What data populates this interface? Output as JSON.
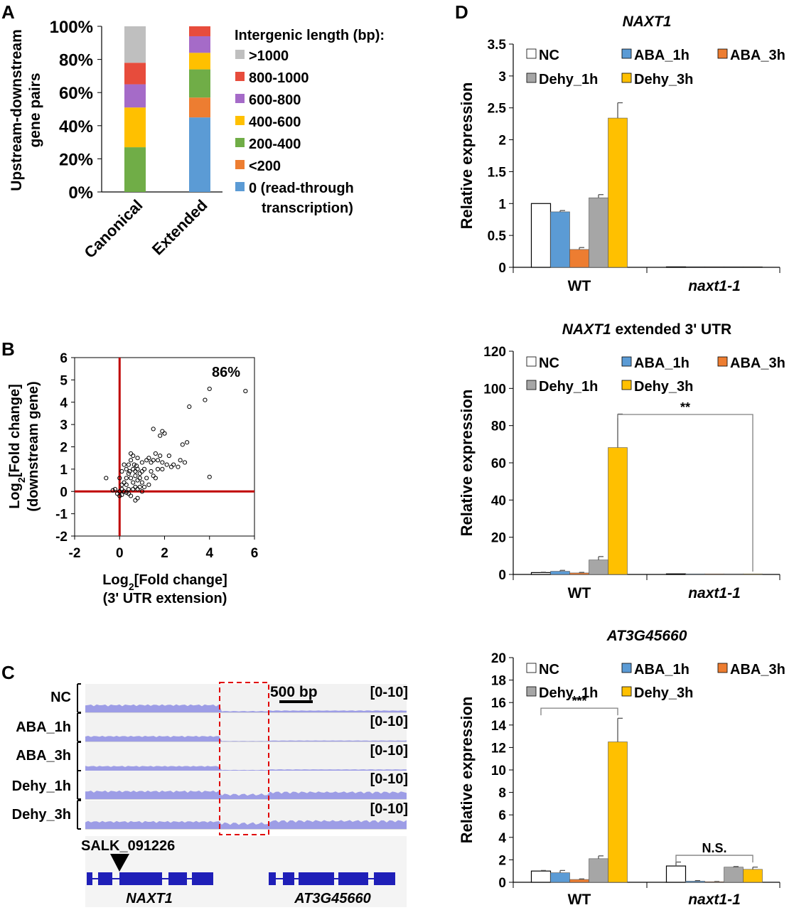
{
  "panels": {
    "A": "A",
    "B": "B",
    "C": "C",
    "D": "D"
  },
  "chart_data": [
    {
      "id": "A",
      "type": "bar",
      "stacked": true,
      "ylabel_lines": [
        "Upstream-downstream",
        "gene pairs"
      ],
      "yticks": [
        "0%",
        "20%",
        "40%",
        "60%",
        "80%",
        "100%"
      ],
      "ylim": [
        0,
        100
      ],
      "categories": [
        "Canonical",
        "Extended"
      ],
      "legend_title": "Intergenic length (bp):",
      "series": [
        {
          "name": "0 (read-through",
          "name2": "transcription)",
          "color": "#5b9bd5",
          "values": [
            0,
            45
          ]
        },
        {
          "name": "<200",
          "color": "#ed7d31",
          "values": [
            0,
            12
          ]
        },
        {
          "name": "200-400",
          "color": "#70ad47",
          "values": [
            27,
            17
          ]
        },
        {
          "name": "400-600",
          "color": "#ffc000",
          "values": [
            24,
            10
          ]
        },
        {
          "name": "600-800",
          "color": "#a56bc8",
          "values": [
            14,
            10
          ]
        },
        {
          "name": "800-1000",
          "color": "#e74c3c",
          "values": [
            13,
            6
          ]
        },
        {
          "name": ">1000",
          "color": "#bfbfbf",
          "values": [
            22,
            0
          ]
        }
      ]
    },
    {
      "id": "B",
      "type": "scatter",
      "xlabel": "Log",
      "xlabel_sub": "2",
      "xlabel_rest": "[Fold change]",
      "xlabel2": "(3' UTR extension)",
      "ylabel": "Log",
      "ylabel_sub": "2",
      "ylabel_rest": "[Fold change]",
      "ylabel2": "(downstream gene)",
      "xlim": [
        -2,
        6
      ],
      "ylim": [
        -2,
        6
      ],
      "xticks": [
        "-2",
        "0",
        "2",
        "4",
        "6"
      ],
      "yticks": [
        "-2",
        "-1",
        "0",
        "1",
        "2",
        "3",
        "4",
        "5",
        "6"
      ],
      "annotation": "86%",
      "line_color": "#c00000",
      "points": [
        [
          5.6,
          4.5
        ],
        [
          4.0,
          4.6
        ],
        [
          3.8,
          4.1
        ],
        [
          3.1,
          3.8
        ],
        [
          4.0,
          0.65
        ],
        [
          1.5,
          2.8
        ],
        [
          1.9,
          2.7
        ],
        [
          2.0,
          2.6
        ],
        [
          1.8,
          2.5
        ],
        [
          2.8,
          2.1
        ],
        [
          3.0,
          2.2
        ],
        [
          2.9,
          1.3
        ],
        [
          2.7,
          1.4
        ],
        [
          2.6,
          1.1
        ],
        [
          2.4,
          1.2
        ],
        [
          2.3,
          1.1
        ],
        [
          2.2,
          1.6
        ],
        [
          2.1,
          1.2
        ],
        [
          1.8,
          1.6
        ],
        [
          1.7,
          1.4
        ],
        [
          1.6,
          1.7
        ],
        [
          1.5,
          1.4
        ],
        [
          1.4,
          1.3
        ],
        [
          1.3,
          1.5
        ],
        [
          1.2,
          1.4
        ],
        [
          1.1,
          1.0
        ],
        [
          1.0,
          1.3
        ],
        [
          1.0,
          0.9
        ],
        [
          1.7,
          1.0
        ],
        [
          1.9,
          1.0
        ],
        [
          1.9,
          1.3
        ],
        [
          0.5,
          1.7
        ],
        [
          0.6,
          1.6
        ],
        [
          0.5,
          1.4
        ],
        [
          0.8,
          1.5
        ],
        [
          0.4,
          1.2
        ],
        [
          0.3,
          1.0
        ],
        [
          0.4,
          0.8
        ],
        [
          0.2,
          1.2
        ],
        [
          0.1,
          0.9
        ],
        [
          0.6,
          1.0
        ],
        [
          0.7,
          0.9
        ],
        [
          0.8,
          1.0
        ],
        [
          0.9,
          0.8
        ],
        [
          0.7,
          0.7
        ],
        [
          0.5,
          0.6
        ],
        [
          0.6,
          0.4
        ],
        [
          0.8,
          0.5
        ],
        [
          0.9,
          0.6
        ],
        [
          1.0,
          0.4
        ],
        [
          0.3,
          0.6
        ],
        [
          0.2,
          0.4
        ],
        [
          0.1,
          0.3
        ],
        [
          0.0,
          0.6
        ],
        [
          0.1,
          0.1
        ],
        [
          0.0,
          0.0
        ],
        [
          -0.1,
          -0.1
        ],
        [
          0.0,
          -0.2
        ],
        [
          0.1,
          -0.15
        ],
        [
          -0.2,
          0.1
        ],
        [
          -0.3,
          0.05
        ],
        [
          -0.6,
          0.6
        ],
        [
          0.3,
          0.3
        ],
        [
          0.4,
          0.1
        ],
        [
          0.6,
          0.1
        ],
        [
          0.7,
          0.2
        ],
        [
          0.5,
          -0.2
        ],
        [
          0.8,
          -0.3
        ],
        [
          0.7,
          -0.4
        ],
        [
          0.4,
          -0.1
        ],
        [
          1.2,
          0.6
        ],
        [
          1.3,
          0.3
        ],
        [
          1.1,
          0.2
        ],
        [
          0.9,
          0.2
        ],
        [
          1.5,
          0.7
        ],
        [
          1.6,
          0.6
        ],
        [
          0.2,
          0.0
        ],
        [
          0.3,
          -0.05
        ],
        [
          1.0,
          0.0
        ],
        [
          0.8,
          0.1
        ],
        [
          1.4,
          0.9
        ],
        [
          0.45,
          0.9
        ],
        [
          0.65,
          1.2
        ],
        [
          0.75,
          1.15
        ]
      ]
    },
    {
      "id": "D1",
      "type": "bar",
      "title": "NAXT1",
      "ylabel": "Relative expression",
      "ylim": [
        0,
        3.5
      ],
      "yticks": [
        "0",
        "0.5",
        "1",
        "1.5",
        "2",
        "2.5",
        "3",
        "3.5"
      ],
      "categories": [
        "WT",
        "naxt1-1"
      ],
      "legend": [
        "NC",
        "ABA_1h",
        "ABA_3h",
        "Dehy_1h",
        "Dehy_3h"
      ],
      "colors": [
        "#ffffff",
        "#5b9bd5",
        "#ed7d31",
        "#a6a6a6",
        "#ffc000"
      ],
      "values": [
        [
          1.0,
          0.87,
          0.28,
          1.09,
          2.34
        ],
        [
          0.005,
          0.005,
          0.005,
          0.005,
          0.005
        ]
      ],
      "errors": [
        [
          0.0,
          0.02,
          0.03,
          0.05,
          0.24
        ],
        [
          0,
          0,
          0,
          0,
          0
        ]
      ],
      "sig": null
    },
    {
      "id": "D2",
      "type": "bar",
      "title": "NAXT1",
      "title_rest": " extended 3' UTR",
      "ylabel": "Relative expression",
      "ylim": [
        0,
        120
      ],
      "yticks": [
        "0",
        "20",
        "40",
        "60",
        "80",
        "100",
        "120"
      ],
      "categories": [
        "WT",
        "naxt1-1"
      ],
      "legend": [
        "NC",
        "ABA_1h",
        "ABA_3h",
        "Dehy_1h",
        "Dehy_3h"
      ],
      "colors": [
        "#ffffff",
        "#5b9bd5",
        "#ed7d31",
        "#a6a6a6",
        "#ffc000"
      ],
      "values": [
        [
          1.0,
          1.7,
          0.8,
          7.8,
          68.2
        ],
        [
          0.3,
          0.3,
          0.3,
          0.3,
          0.3
        ]
      ],
      "errors": [
        [
          0.2,
          0.5,
          0.3,
          1.8,
          18.0
        ],
        [
          0,
          0,
          0,
          0,
          0
        ]
      ],
      "sig": {
        "label": "**",
        "from": [
          0,
          4
        ],
        "to": [
          1,
          4
        ],
        "level": 86
      }
    },
    {
      "id": "D3",
      "type": "bar",
      "title": "AT3G45660",
      "ylabel": "Relative expression",
      "ylim": [
        0,
        20
      ],
      "yticks": [
        "0",
        "2",
        "4",
        "6",
        "8",
        "10",
        "12",
        "14",
        "16",
        "18",
        "20"
      ],
      "categories": [
        "WT",
        "naxt1-1"
      ],
      "legend": [
        "NC",
        "ABA_1h",
        "ABA_3h",
        "Dehy_1h",
        "Dehy_3h"
      ],
      "colors": [
        "#ffffff",
        "#5b9bd5",
        "#ed7d31",
        "#a6a6a6",
        "#ffc000"
      ],
      "values": [
        [
          1.0,
          0.85,
          0.25,
          2.1,
          12.5
        ],
        [
          1.45,
          0.1,
          0.05,
          1.35,
          1.15
        ]
      ],
      "errors": [
        [
          0.05,
          0.2,
          0.05,
          0.25,
          2.1
        ],
        [
          0.35,
          0.05,
          0.02,
          0.05,
          0.2
        ]
      ],
      "sig": [
        {
          "label": "***",
          "from": [
            0,
            0
          ],
          "to": [
            0,
            4
          ],
          "level": 15.5
        },
        {
          "label": "N.S.",
          "from": [
            1,
            0
          ],
          "to": [
            1,
            4
          ],
          "level": 2.4
        }
      ]
    }
  ],
  "panelC": {
    "tracks": [
      "NC",
      "ABA_1h",
      "ABA_3h",
      "Dehy_1h",
      "Dehy_3h"
    ],
    "range_label": "[0-10]",
    "scale_label": "500 bp",
    "mutant_label": "SALK_091226",
    "genes": [
      "NAXT1",
      "AT3G45660"
    ],
    "track_color": "#9d9de6",
    "gene_color": "#1f1fb8",
    "box_color": "#e00000"
  }
}
